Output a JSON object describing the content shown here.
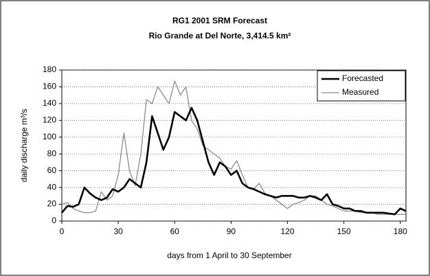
{
  "chart_data": {
    "type": "line",
    "title": "RG1 2001 SRM Forecast",
    "subtitle": "Rio Grande at Del Norte, 3,414.5 km²",
    "x_label": "days from 1 April to 30 September",
    "y_label": "daily discharge m³/s",
    "x": [
      0,
      3,
      6,
      9,
      12,
      15,
      18,
      21,
      24,
      27,
      30,
      33,
      36,
      39,
      42,
      45,
      48,
      51,
      54,
      57,
      60,
      63,
      66,
      69,
      72,
      75,
      78,
      81,
      84,
      87,
      90,
      93,
      96,
      99,
      102,
      105,
      108,
      111,
      114,
      117,
      120,
      123,
      126,
      129,
      132,
      135,
      138,
      141,
      144,
      147,
      150,
      153,
      156,
      159,
      162,
      165,
      168,
      171,
      174,
      177,
      180,
      183
    ],
    "series": [
      {
        "name": "Forecasted",
        "color": "#000000",
        "width": 2.6,
        "values": [
          10,
          18,
          17,
          20,
          40,
          33,
          28,
          25,
          28,
          38,
          35,
          40,
          50,
          45,
          40,
          70,
          125,
          105,
          85,
          100,
          130,
          125,
          120,
          135,
          120,
          95,
          70,
          55,
          70,
          65,
          55,
          60,
          45,
          40,
          38,
          35,
          32,
          30,
          28,
          30,
          30,
          30,
          28,
          28,
          30,
          28,
          25,
          32,
          20,
          18,
          15,
          15,
          12,
          12,
          10,
          10,
          10,
          10,
          9,
          8,
          15,
          12
        ]
      },
      {
        "name": "Measured",
        "color": "#8a8a8a",
        "width": 1.3,
        "values": [
          20,
          22,
          15,
          12,
          10,
          10,
          12,
          35,
          25,
          30,
          55,
          105,
          60,
          42,
          80,
          145,
          140,
          160,
          150,
          140,
          167,
          150,
          160,
          120,
          110,
          90,
          85,
          80,
          75,
          65,
          62,
          72,
          55,
          40,
          38,
          45,
          33,
          30,
          25,
          20,
          15,
          20,
          22,
          25,
          30,
          30,
          25,
          20,
          18,
          15,
          12,
          12,
          12,
          10,
          10,
          10,
          8,
          8,
          8,
          8,
          8,
          8
        ]
      }
    ],
    "xlim": [
      0,
      183
    ],
    "xticks": [
      0,
      30,
      60,
      90,
      120,
      150,
      180
    ],
    "ylim": [
      0,
      180
    ],
    "yticks": [
      0,
      20,
      40,
      60,
      80,
      100,
      120,
      140,
      160,
      180
    ],
    "grid": true,
    "legend": "upper right"
  }
}
